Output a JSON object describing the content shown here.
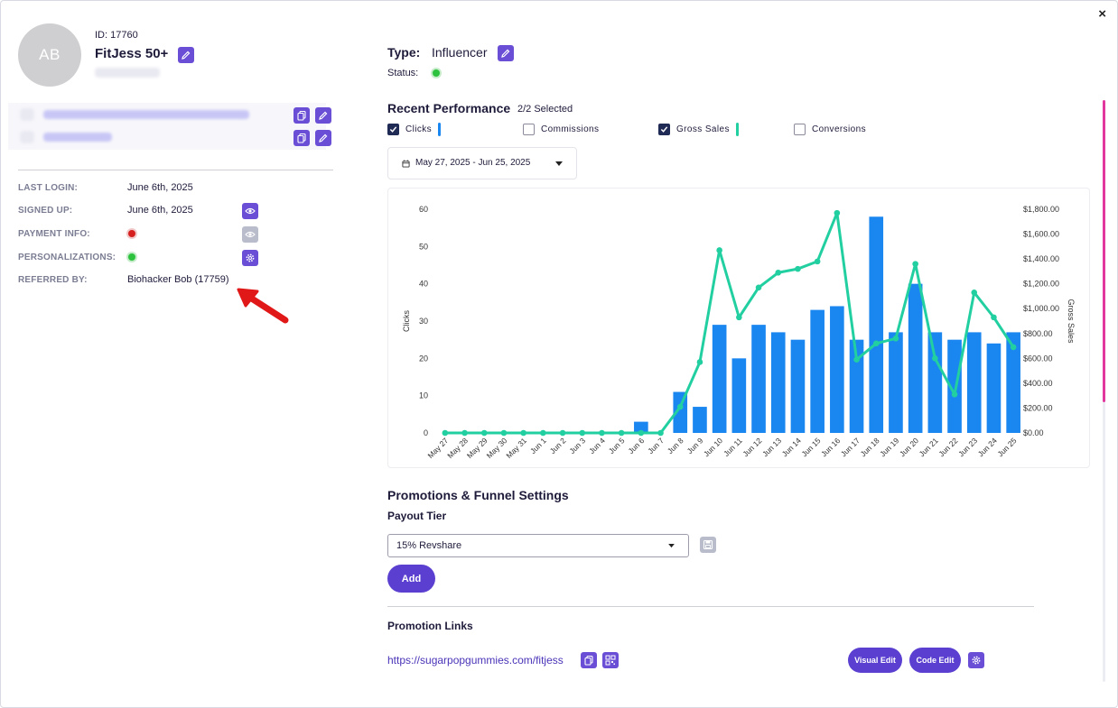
{
  "close_label": "×",
  "profile": {
    "initials": "AB",
    "id_label": "ID: 17760",
    "name": "FitJess 50+"
  },
  "details": [
    {
      "label": "LAST LOGIN:",
      "value": "June 6th, 2025"
    },
    {
      "label": "SIGNED UP:",
      "value": "June 6th, 2025"
    },
    {
      "label": "PAYMENT INFO:",
      "status": "red"
    },
    {
      "label": "PERSONALIZATIONS:",
      "status": "green"
    },
    {
      "label": "REFERRED BY:",
      "value": "Biohacker Bob (17759)"
    }
  ],
  "type": {
    "label": "Type:",
    "value": "Influencer"
  },
  "status": {
    "label": "Status:",
    "color": "#2cc23d"
  },
  "performance": {
    "title": "Recent Performance",
    "selected": "2/2 Selected",
    "metrics": [
      {
        "label": "Clicks",
        "checked": true,
        "color": "#1a86f0"
      },
      {
        "label": "Commissions",
        "checked": false
      },
      {
        "label": "Gross Sales",
        "checked": true,
        "color": "#22cfa1"
      },
      {
        "label": "Conversions",
        "checked": false
      }
    ],
    "date_range": "May 27, 2025 - Jun 25, 2025"
  },
  "chart_data": {
    "type": "bar",
    "categories": [
      "May 27",
      "May 28",
      "May 29",
      "May 30",
      "May 31",
      "Jun 1",
      "Jun 2",
      "Jun 3",
      "Jun 4",
      "Jun 5",
      "Jun 6",
      "Jun 7",
      "Jun 8",
      "Jun 9",
      "Jun 10",
      "Jun 11",
      "Jun 12",
      "Jun 13",
      "Jun 14",
      "Jun 15",
      "Jun 16",
      "Jun 17",
      "Jun 18",
      "Jun 19",
      "Jun 20",
      "Jun 21",
      "Jun 22",
      "Jun 23",
      "Jun 24",
      "Jun 25"
    ],
    "series": [
      {
        "name": "Clicks",
        "kind": "bar",
        "axis": "left",
        "color": "#1a86f0",
        "values": [
          0,
          0,
          0,
          0,
          0,
          0,
          0,
          0,
          0,
          0,
          3,
          0,
          11,
          7,
          29,
          20,
          29,
          27,
          25,
          33,
          34,
          25,
          58,
          27,
          40,
          27,
          25,
          27,
          24,
          27
        ]
      },
      {
        "name": "Gross Sales",
        "kind": "line",
        "axis": "right",
        "color": "#22cfa1",
        "values": [
          0,
          0,
          0,
          0,
          0,
          0,
          0,
          0,
          0,
          0,
          0,
          0,
          210,
          570,
          1470,
          930,
          1170,
          1290,
          1320,
          1380,
          1770,
          590,
          720,
          760,
          1360,
          600,
          310,
          1130,
          930,
          690
        ]
      }
    ],
    "ylabel": "Clicks",
    "y2label": "Gross Sales",
    "ylim": [
      0,
      60
    ],
    "y2lim": [
      0,
      1800
    ],
    "yticks": [
      "0",
      "10",
      "20",
      "30",
      "40",
      "50",
      "60"
    ],
    "y2ticks": [
      "$0.00",
      "$200.00",
      "$400.00",
      "$600.00",
      "$800.00",
      "$1,000.00",
      "$1,200.00",
      "$1,400.00",
      "$1,600.00",
      "$1,800.00"
    ]
  },
  "promotions": {
    "title": "Promotions & Funnel Settings",
    "payout_label": "Payout Tier",
    "payout_value": "15% Revshare",
    "add_label": "Add",
    "links_title": "Promotion Links",
    "link_url": "https://sugarpopgummies.com/fitjess",
    "visual_edit_label": "Visual Edit",
    "code_edit_label": "Code Edit"
  }
}
